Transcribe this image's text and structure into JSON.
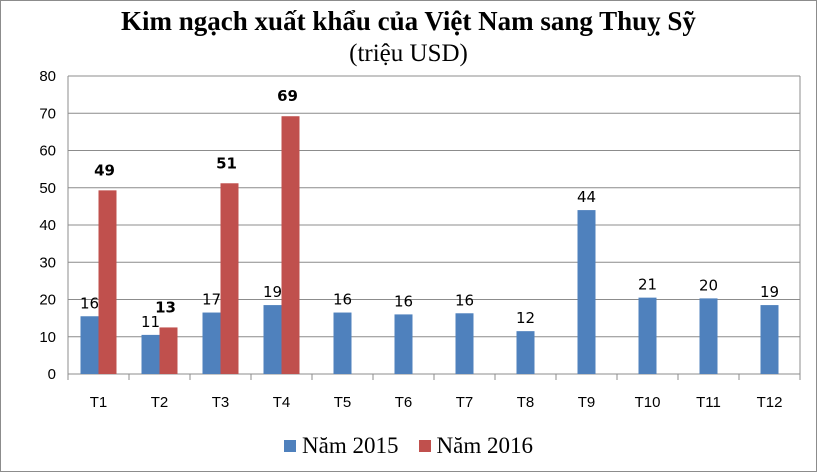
{
  "chart_data": {
    "type": "bar",
    "title": "Kim ngạch xuất khẩu của Việt Nam sang Thuỵ Sỹ",
    "subtitle": "(triệu USD)",
    "categories": [
      "T1",
      "T2",
      "T3",
      "T4",
      "T5",
      "T6",
      "T7",
      "T8",
      "T9",
      "T10",
      "T11",
      "T12"
    ],
    "series": [
      {
        "name": "Năm 2015",
        "color": "#4f81bd",
        "values": [
          15.5,
          10.5,
          16.5,
          18.5,
          16.5,
          16,
          16.3,
          11.5,
          44,
          20.5,
          20.3,
          18.5
        ],
        "labels": [
          "16",
          "11",
          "17",
          "19",
          "16",
          "16",
          "16",
          "12",
          "44",
          "21",
          "20",
          "19"
        ]
      },
      {
        "name": "Năm 2016",
        "color": "#c0504d",
        "values": [
          49.3,
          12.5,
          51.2,
          69.2,
          null,
          null,
          null,
          null,
          null,
          null,
          null,
          null
        ],
        "labels": [
          "49",
          "13",
          "51",
          "69",
          "",
          "",
          "",
          "",
          "",
          "",
          "",
          ""
        ]
      }
    ],
    "yticks": [
      "0",
      "10",
      "20",
      "30",
      "40",
      "50",
      "60",
      "70",
      "80"
    ],
    "ylim": [
      0,
      80
    ],
    "grid": true,
    "legend": "bottom"
  }
}
